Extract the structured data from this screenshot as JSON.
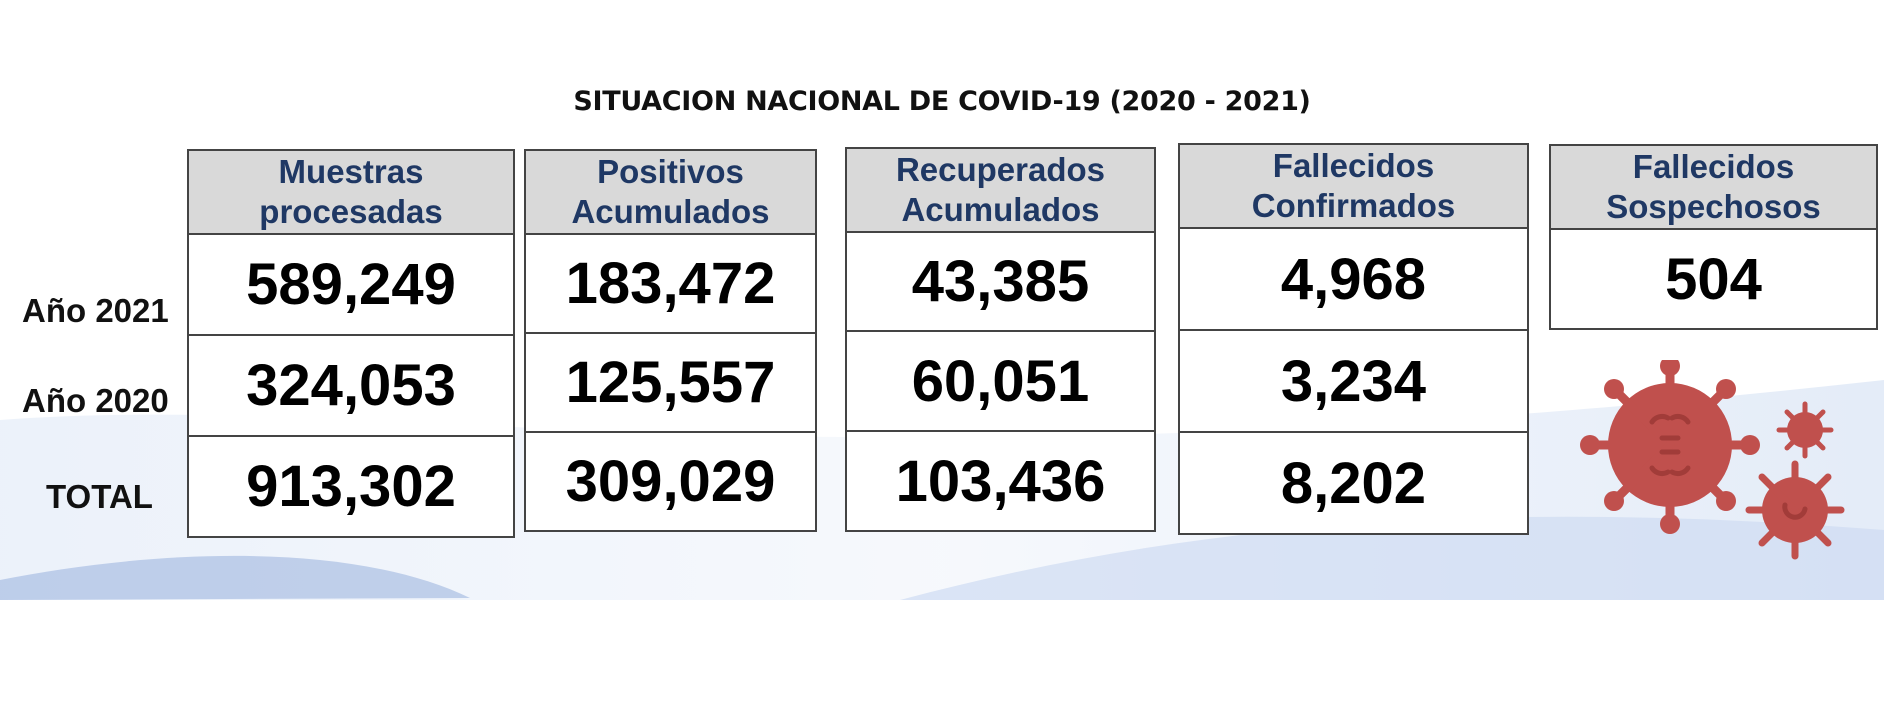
{
  "title": "SITUACION NACIONAL DE COVID-19 (2020 - 2021)",
  "row_labels": [
    "Año 2021",
    "Año 2020",
    "TOTAL"
  ],
  "columns": [
    {
      "header_line1": "Muestras",
      "header_line2": "procesadas",
      "values": [
        "589,249",
        "324,053",
        "913,302"
      ]
    },
    {
      "header_line1": "Positivos",
      "header_line2": "Acumulados",
      "values": [
        "183,472",
        "125,557",
        "309,029"
      ]
    },
    {
      "header_line1": "Recuperados",
      "header_line2": "Acumulados",
      "values": [
        "43,385",
        "60,051",
        "103,436"
      ]
    },
    {
      "header_line1": "Fallecidos",
      "header_line2": "Confirmados",
      "values": [
        "4,968",
        "3,234",
        "8,202"
      ]
    },
    {
      "header_line1": "Fallecidos",
      "header_line2": "Sospechosos",
      "values": [
        "504"
      ]
    }
  ],
  "colors": {
    "header_bg": "#d9d9d9",
    "header_text": "#1f3864",
    "virus": "#c0504d"
  },
  "icons": [
    "coronavirus-icon"
  ]
}
